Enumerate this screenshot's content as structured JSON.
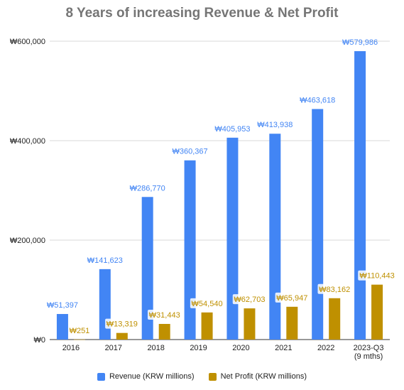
{
  "chart_data": {
    "type": "bar",
    "title": "8 Years of increasing Revenue & Net Profit",
    "xlabel": "",
    "ylabel": "",
    "categories": [
      [
        "2016"
      ],
      [
        "2017"
      ],
      [
        "2018"
      ],
      [
        "2019"
      ],
      [
        "2020"
      ],
      [
        "2021"
      ],
      [
        "2022"
      ],
      [
        "2023-Q3",
        "(9 mths)"
      ]
    ],
    "series": [
      {
        "name": "Revenue (KRW millions)",
        "color": "#4285f4",
        "label_color": "#4285f4",
        "values": [
          51397,
          141623,
          286770,
          360367,
          405953,
          413938,
          463618,
          579986
        ],
        "labels": [
          "₩51,397",
          "₩141,623",
          "₩286,770",
          "₩360,367",
          "₩405,953",
          "₩413,938",
          "₩463,618",
          "₩579,986"
        ]
      },
      {
        "name": "Net Profit (KRW millions)",
        "color": "#bf9000",
        "label_color": "#bf9000",
        "values": [
          251,
          13319,
          31443,
          54540,
          62703,
          65947,
          83162,
          110443
        ],
        "labels": [
          "₩251",
          "₩13,319",
          "₩31,443",
          "₩54,540",
          "₩62,703",
          "₩65,947",
          "₩83,162",
          "₩110,443"
        ]
      }
    ],
    "ylim": [
      0,
      600000
    ],
    "yticks": [
      0,
      200000,
      400000,
      600000
    ],
    "ytick_labels": [
      "₩0",
      "₩200,000",
      "₩400,000",
      "₩600,000"
    ],
    "grid": true,
    "legend_position": "bottom"
  }
}
